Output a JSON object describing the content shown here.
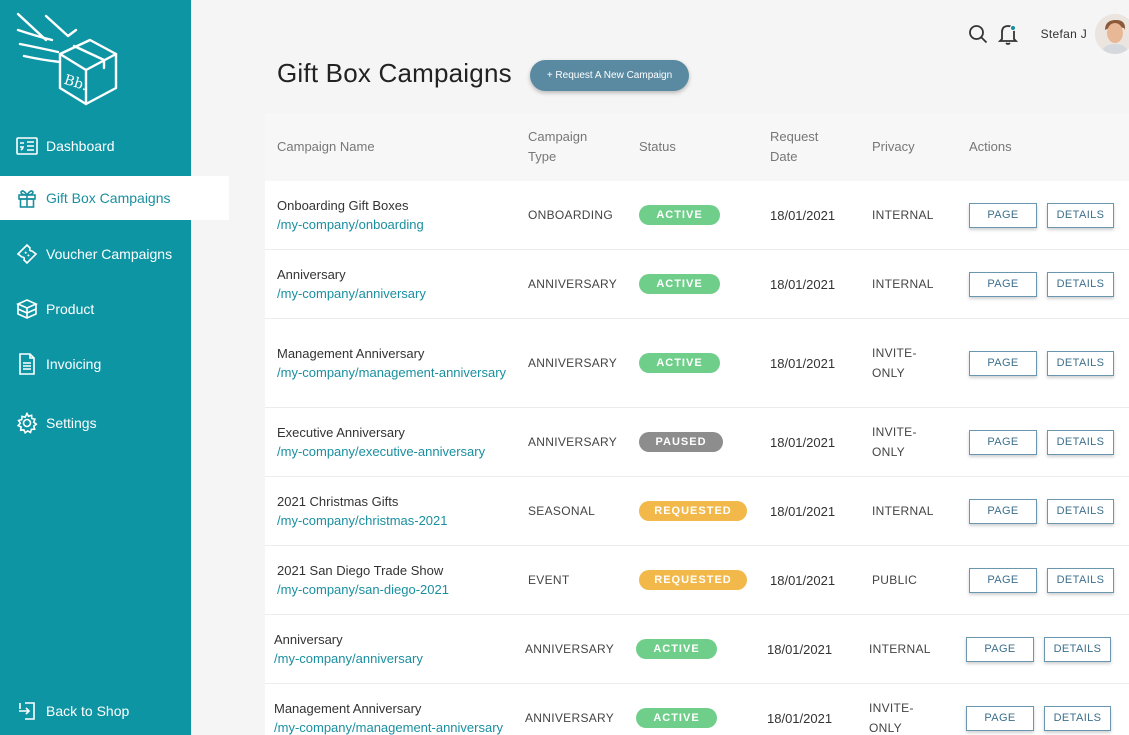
{
  "sidebar": {
    "items": [
      {
        "label": "Dashboard",
        "icon": "dashboard-icon",
        "active": false
      },
      {
        "label": "Gift Box Campaigns",
        "icon": "gift-icon",
        "active": true
      },
      {
        "label": "Voucher Campaigns",
        "icon": "ticket-icon",
        "active": false
      },
      {
        "label": "Product",
        "icon": "box-icon",
        "active": false
      },
      {
        "label": "Invoicing",
        "icon": "document-icon",
        "active": false
      },
      {
        "label": "Settings",
        "icon": "gear-icon",
        "active": false
      }
    ],
    "back_label": "Back to Shop"
  },
  "header": {
    "user_name": "Stefan J"
  },
  "page": {
    "title": "Gift Box Campaigns",
    "request_button": "+ Request A New Campaign"
  },
  "table": {
    "headers": {
      "name": "Campaign Name",
      "type": "Campaign Type",
      "status": "Status",
      "date": "Request Date",
      "privacy": "Privacy",
      "actions": "Actions"
    },
    "page_label": "PAGE",
    "details_label": "DETAILS",
    "rows": [
      {
        "name": "Onboarding Gift Boxes",
        "link": "/my-company/onboarding",
        "type": "ONBOARDING",
        "status": "ACTIVE",
        "status_kind": "active",
        "date": "18/01/2021",
        "privacy": "INTERNAL"
      },
      {
        "name": "Anniversary",
        "link": "/my-company/anniversary",
        "type": "ANNIVERSARY",
        "status": "ACTIVE",
        "status_kind": "active",
        "date": "18/01/2021",
        "privacy": "INTERNAL"
      },
      {
        "name": "Management Anniversary",
        "link": "/my-company/management-anniversary",
        "type": "ANNIVERSARY",
        "status": "ACTIVE",
        "status_kind": "active",
        "date": "18/01/2021",
        "privacy": "INVITE-ONLY"
      },
      {
        "name": "Executive Anniversary",
        "link": "/my-company/executive-anniversary",
        "type": "ANNIVERSARY",
        "status": "PAUSED",
        "status_kind": "paused",
        "date": "18/01/2021",
        "privacy": "INVITE-ONLY"
      },
      {
        "name": "2021 Christmas Gifts",
        "link": "/my-company/christmas-2021",
        "type": "SEASONAL",
        "status": "REQUESTED",
        "status_kind": "requested",
        "date": "18/01/2021",
        "privacy": "INTERNAL"
      },
      {
        "name": "2021 San Diego Trade Show",
        "link": "/my-company/san-diego-2021",
        "type": "EVENT",
        "status": "REQUESTED",
        "status_kind": "requested",
        "date": "18/01/2021",
        "privacy": "PUBLIC"
      },
      {
        "name": "Anniversary",
        "link": "/my-company/anniversary",
        "type": "ANNIVERSARY",
        "status": "ACTIVE",
        "status_kind": "active",
        "date": "18/01/2021",
        "privacy": "INTERNAL"
      },
      {
        "name": "Management Anniversary",
        "link": "/my-company/management-anniversary",
        "type": "ANNIVERSARY",
        "status": "ACTIVE",
        "status_kind": "active",
        "date": "18/01/2021",
        "privacy": "INVITE-ONLY"
      }
    ]
  }
}
